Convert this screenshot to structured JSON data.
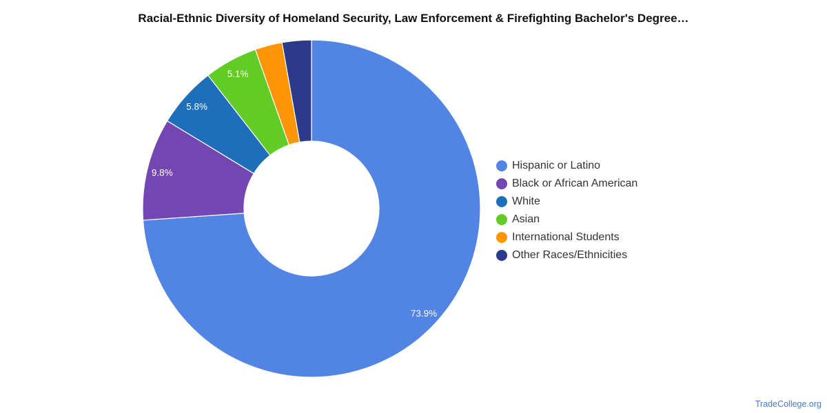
{
  "title": "Racial-Ethnic Diversity of Homeland Security, Law Enforcement & Firefighting Bachelor's Degree…",
  "source": "TradeCollege.org",
  "chart_data": {
    "type": "pie",
    "donut": true,
    "legend_position": "right",
    "slices": [
      {
        "name": "Hispanic or Latino",
        "value": 73.9,
        "label": "73.9%",
        "color": "#5285e3"
      },
      {
        "name": "Black or African American",
        "value": 9.8,
        "label": "9.8%",
        "color": "#7346b2"
      },
      {
        "name": "White",
        "value": 5.8,
        "label": "5.8%",
        "color": "#1e6fb9"
      },
      {
        "name": "Asian",
        "value": 5.1,
        "label": "5.1%",
        "color": "#62cc26"
      },
      {
        "name": "International Students",
        "value": 2.6,
        "label": "",
        "color": "#ff9505"
      },
      {
        "name": "Other Races/Ethnicities",
        "value": 2.8,
        "label": "",
        "color": "#2d3a8c"
      }
    ]
  }
}
